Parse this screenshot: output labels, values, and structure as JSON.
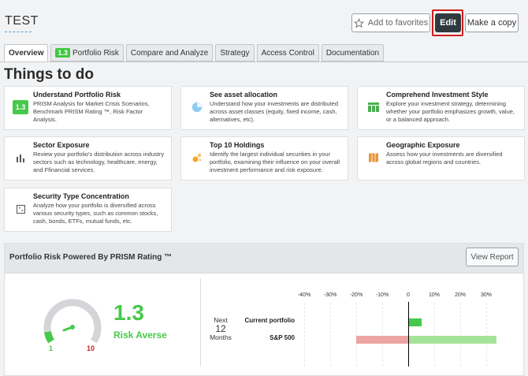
{
  "header": {
    "title": "TEST",
    "favorites_label": "Add to favorites",
    "edit_label": "Edit",
    "copy_label": "Make a copy"
  },
  "tabs": [
    {
      "label": "Overview",
      "active": true
    },
    {
      "label": "Portfolio Risk",
      "badge": "1.3"
    },
    {
      "label": "Compare and Analyze"
    },
    {
      "label": "Strategy"
    },
    {
      "label": "Access Control"
    },
    {
      "label": "Documentation"
    }
  ],
  "section_heading": "Things to do",
  "cards": [
    {
      "title": "Understand Portfolio Risk",
      "desc": "PRISM Analysis for Market Crisis Scenarios, Benchmark PRISM Rating ™, Risk Factor Analysis.",
      "icon": "score-badge",
      "badge": "1.3"
    },
    {
      "title": "See asset allocation",
      "desc": "Understand how your investments are distributed across asset classes (equity, fixed income, cash, alternatives, etc).",
      "icon": "pie-chart-icon"
    },
    {
      "title": "Comprehend Investment Style",
      "desc": "Explore your investment strategy, determining whether your portfolio emphasizes growth, value, or a balanced approach.",
      "icon": "table-icon"
    },
    {
      "title": "Sector Exposure",
      "desc": "Review your portfolio's distribution across industry sectors such as technology, healthcare, energy, and Ffinancial services.",
      "icon": "bar-chart-icon"
    },
    {
      "title": "Top 10 Holdings",
      "desc": "Identify the largest individual securities in your portfolio, examining their influence on your overall investment performance and risk exposure.",
      "icon": "bubbles-icon"
    },
    {
      "title": "Geographic Exposure",
      "desc": "Assess how your investments are diversified across global regions and countries.",
      "icon": "map-icon"
    },
    {
      "title": "Security Type Concentration",
      "desc": "Analyze how your portfolio is diversified across various security types, such as common stocks, cash, bonds, ETFs, mutual funds, etc.",
      "icon": "grid-icon"
    }
  ],
  "panel": {
    "title": "Portfolio Risk Powered By PRISM Rating ™",
    "view_report_label": "View Report",
    "score": "1.3",
    "risk_label": "Risk Averse",
    "gauge_min": "1",
    "gauge_max": "10",
    "horizon": {
      "line1": "Next",
      "line2": "12",
      "line3": "Months"
    }
  },
  "colors": {
    "accent_green": "#46c94a",
    "danger_red": "#cc2222",
    "highlight_border": "#d11c1c",
    "bar_green": "#a6e39a",
    "bar_red": "#eca5a3"
  },
  "chart_data": {
    "type": "bar",
    "orientation": "horizontal",
    "tick_labels": [
      "-40%",
      "-30%",
      "-20%",
      "-10%",
      "0",
      "10%",
      "20%",
      "30%"
    ],
    "xlim": [
      -40,
      40
    ],
    "categories": [
      "Current portfolio",
      "S&P 500"
    ],
    "ranges": [
      {
        "category": "Current portfolio",
        "low": 0,
        "high": 5
      },
      {
        "category": "S&P 500",
        "low": -20,
        "high": 34
      }
    ]
  }
}
